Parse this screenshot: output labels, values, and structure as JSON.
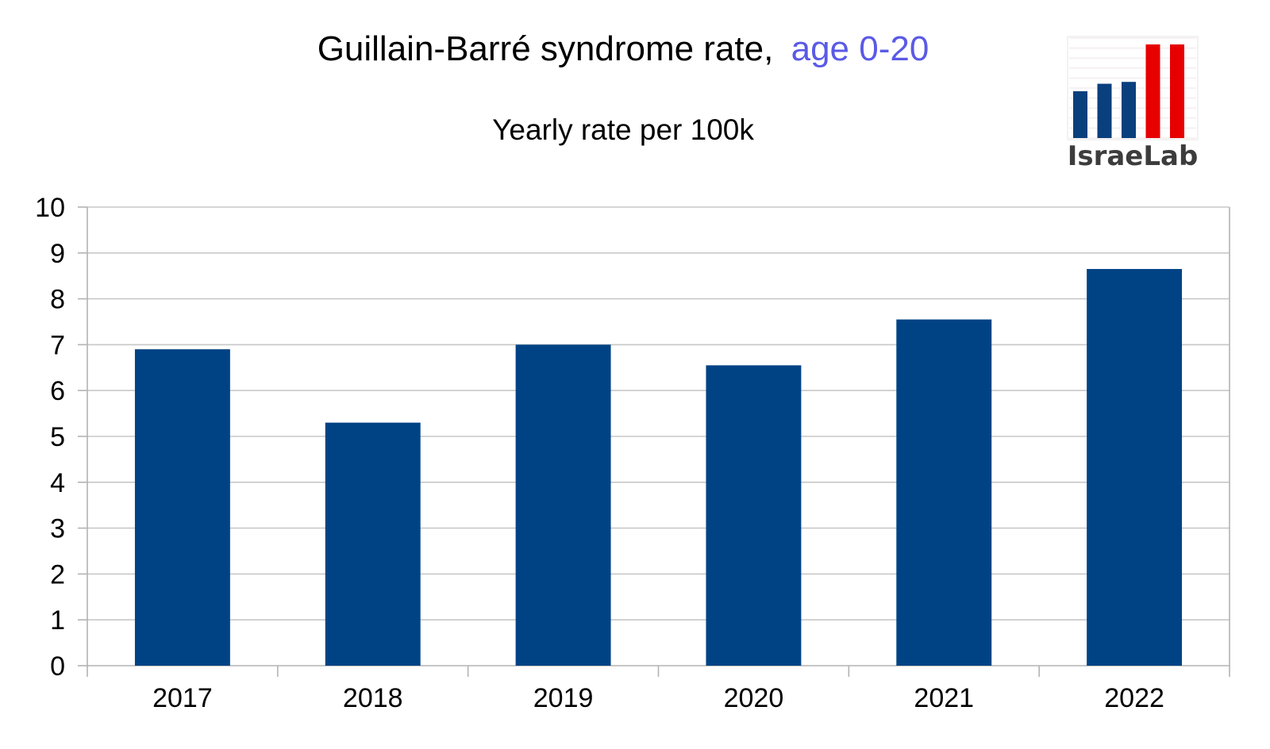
{
  "chart_data": {
    "type": "bar",
    "title": "Guillain-Barré syndrome rate,",
    "title_highlight": "age 0-20",
    "subtitle": "Yearly rate per 100k",
    "xlabel": "",
    "ylabel": "",
    "categories": [
      "2017",
      "2018",
      "2019",
      "2020",
      "2021",
      "2022"
    ],
    "values": [
      6.9,
      5.3,
      7.0,
      6.55,
      7.55,
      8.65
    ],
    "ylim": [
      0,
      10
    ],
    "yticks": [
      "0",
      "1",
      "2",
      "3",
      "4",
      "5",
      "6",
      "7",
      "8",
      "9",
      "10"
    ],
    "grid": true,
    "legend": "none"
  },
  "logo": {
    "text": "IsraeLab",
    "bar_levels": [
      0.5,
      0.58,
      0.6,
      1.0,
      1.0
    ],
    "bar_colors": [
      "#0a3f7d",
      "#0a3f7d",
      "#0a3f7d",
      "#e60000",
      "#e60000"
    ]
  },
  "colors": {
    "bar": "#004385",
    "title_highlight": "#5a5ae6",
    "grid": "#c8c8c8",
    "axis": "#b3b3b3",
    "logo_text": "#3c3c3c"
  }
}
